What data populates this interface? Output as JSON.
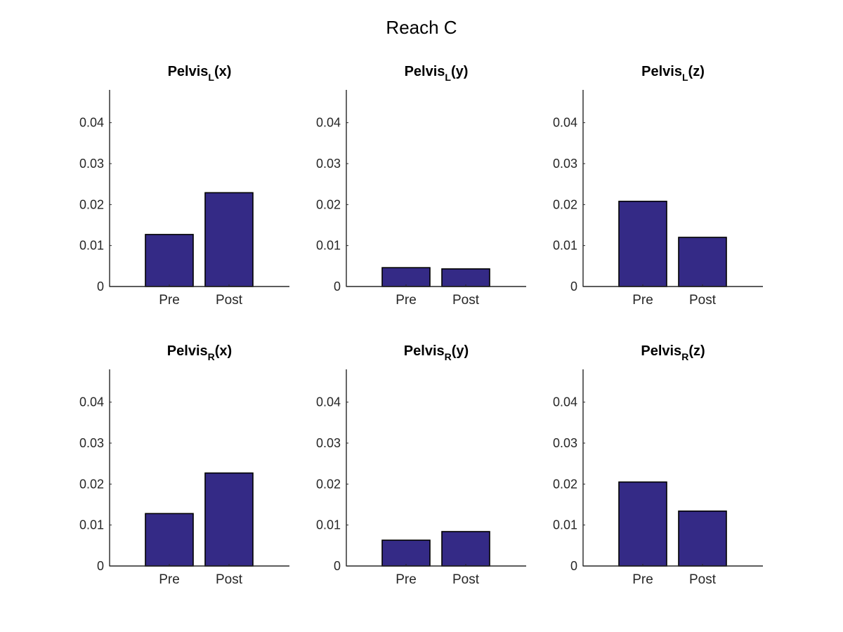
{
  "title": "Reach C",
  "chart_data": [
    {
      "type": "bar",
      "title": {
        "base": "Pelvis",
        "sub": "L",
        "suffix": "(x)"
      },
      "categories": [
        "Pre",
        "Post"
      ],
      "values": [
        0.0127,
        0.0229
      ],
      "ylim": [
        0,
        0.048
      ],
      "yticks": [
        "0",
        "0.01",
        "0.02",
        "0.03",
        "0.04"
      ],
      "color": "#342a86"
    },
    {
      "type": "bar",
      "title": {
        "base": "Pelvis",
        "sub": "L",
        "suffix": "(y)"
      },
      "categories": [
        "Pre",
        "Post"
      ],
      "values": [
        0.0046,
        0.0043
      ],
      "ylim": [
        0,
        0.048
      ],
      "yticks": [
        "0",
        "0.01",
        "0.02",
        "0.03",
        "0.04"
      ],
      "color": "#342a86"
    },
    {
      "type": "bar",
      "title": {
        "base": "Pelvis",
        "sub": "L",
        "suffix": "(z)"
      },
      "categories": [
        "Pre",
        "Post"
      ],
      "values": [
        0.0208,
        0.012
      ],
      "ylim": [
        0,
        0.048
      ],
      "yticks": [
        "0",
        "0.01",
        "0.02",
        "0.03",
        "0.04"
      ],
      "color": "#342a86"
    },
    {
      "type": "bar",
      "title": {
        "base": "Pelvis",
        "sub": "R",
        "suffix": "(x)"
      },
      "categories": [
        "Pre",
        "Post"
      ],
      "values": [
        0.0128,
        0.0227
      ],
      "ylim": [
        0,
        0.048
      ],
      "yticks": [
        "0",
        "0.01",
        "0.02",
        "0.03",
        "0.04"
      ],
      "color": "#342a86"
    },
    {
      "type": "bar",
      "title": {
        "base": "Pelvis",
        "sub": "R",
        "suffix": "(y)"
      },
      "categories": [
        "Pre",
        "Post"
      ],
      "values": [
        0.0063,
        0.0084
      ],
      "ylim": [
        0,
        0.048
      ],
      "yticks": [
        "0",
        "0.01",
        "0.02",
        "0.03",
        "0.04"
      ],
      "color": "#342a86"
    },
    {
      "type": "bar",
      "title": {
        "base": "Pelvis",
        "sub": "R",
        "suffix": "(z)"
      },
      "categories": [
        "Pre",
        "Post"
      ],
      "values": [
        0.0205,
        0.0134
      ],
      "ylim": [
        0,
        0.048
      ],
      "yticks": [
        "0",
        "0.01",
        "0.02",
        "0.03",
        "0.04"
      ],
      "color": "#342a86"
    }
  ]
}
